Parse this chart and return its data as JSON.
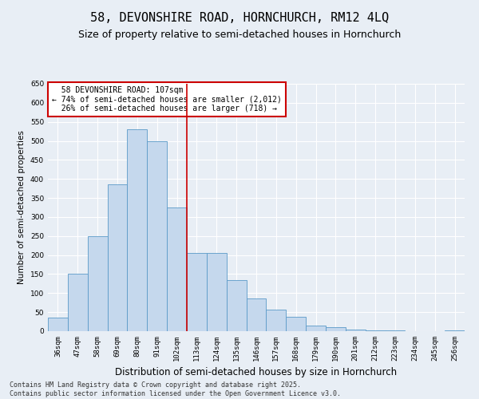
{
  "title": "58, DEVONSHIRE ROAD, HORNCHURCH, RM12 4LQ",
  "subtitle": "Size of property relative to semi-detached houses in Hornchurch",
  "xlabel": "Distribution of semi-detached houses by size in Hornchurch",
  "ylabel": "Number of semi-detached properties",
  "footer_line1": "Contains HM Land Registry data © Crown copyright and database right 2025.",
  "footer_line2": "Contains public sector information licensed under the Open Government Licence v3.0.",
  "bins": [
    "36sqm",
    "47sqm",
    "58sqm",
    "69sqm",
    "80sqm",
    "91sqm",
    "102sqm",
    "113sqm",
    "124sqm",
    "135sqm",
    "146sqm",
    "157sqm",
    "168sqm",
    "179sqm",
    "190sqm",
    "201sqm",
    "212sqm",
    "223sqm",
    "234sqm",
    "245sqm",
    "256sqm"
  ],
  "values": [
    35,
    150,
    250,
    385,
    530,
    500,
    325,
    205,
    205,
    135,
    87,
    57,
    38,
    15,
    10,
    5,
    3,
    2,
    1,
    1,
    2
  ],
  "bar_color": "#c5d8ed",
  "bar_edge_color": "#5a9ac8",
  "property_label": "58 DEVONSHIRE ROAD: 107sqm",
  "pct_smaller": 74,
  "pct_smaller_count": 2012,
  "pct_larger": 26,
  "pct_larger_count": 718,
  "vline_color": "#cc0000",
  "annotation_box_edge_color": "#cc0000",
  "ylim": [
    0,
    650
  ],
  "yticks": [
    0,
    50,
    100,
    150,
    200,
    250,
    300,
    350,
    400,
    450,
    500,
    550,
    600,
    650
  ],
  "bg_color": "#e8eef5",
  "plot_bg_color": "#e8eef5",
  "grid_color": "#ffffff",
  "title_fontsize": 11,
  "subtitle_fontsize": 9,
  "xlabel_fontsize": 8.5,
  "ylabel_fontsize": 7.5,
  "tick_fontsize": 6.5,
  "annotation_fontsize": 7,
  "footer_fontsize": 6
}
